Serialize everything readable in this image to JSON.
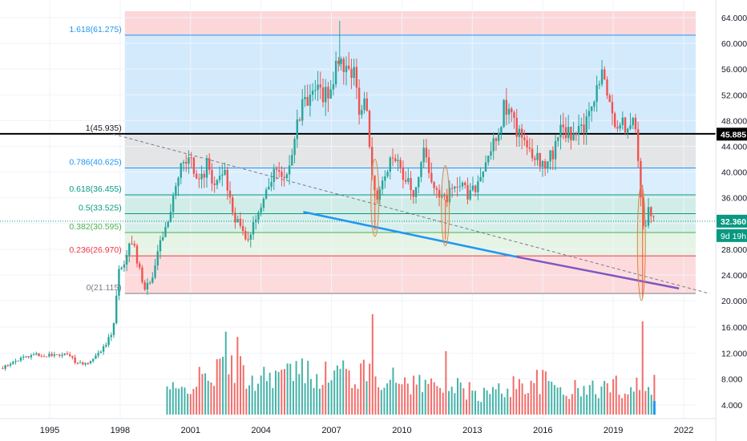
{
  "chart_data": {
    "type": "candlestick",
    "title": "",
    "xlabel": "",
    "ylabel": "",
    "x_ticks": [
      "1995",
      "1998",
      "2001",
      "2004",
      "2007",
      "2010",
      "2013",
      "2016",
      "2019",
      "2022"
    ],
    "y_ticks": [
      "4.000",
      "8.000",
      "12.000",
      "16.000",
      "20.000",
      "24.000",
      "28.000",
      "32.000",
      "36.000",
      "40.000",
      "44.000",
      "48.000",
      "52.000",
      "56.000",
      "60.000",
      "64.000"
    ],
    "x_range": [
      1993.0,
      2023.4
    ],
    "price_range": [
      19.5,
      65.0
    ],
    "volume_axis_range": [
      2.5,
      17.8
    ],
    "fib_levels": [
      {
        "label": "1.618(61.275)",
        "value": 61.275,
        "color": "#2196f3"
      },
      {
        "label": "1(45.935)",
        "value": 45.935,
        "color": "#000000"
      },
      {
        "label": "0.786(40.625)",
        "value": 40.625,
        "color": "#2196f3"
      },
      {
        "label": "0.618(36.455)",
        "value": 36.455,
        "color": "#089981"
      },
      {
        "label": "0.5(33.525)",
        "value": 33.525,
        "color": "#089981"
      },
      {
        "label": "0.382(30.595)",
        "value": 30.595,
        "color": "#4caf50"
      },
      {
        "label": "0.236(26.970)",
        "value": 26.97,
        "color": "#f23645"
      },
      {
        "label": "0(21.115)",
        "value": 21.115,
        "color": "#787b86"
      }
    ],
    "price_labels": [
      {
        "label": "45.885",
        "value": 45.885,
        "color": "#000000"
      },
      {
        "label": "32.360",
        "value": 32.36,
        "color": "#089981"
      },
      {
        "label": "9d 19h",
        "color": "#089981"
      }
    ],
    "price_path": [
      [
        1993.0,
        9.5
      ],
      [
        1993.8,
        10.8
      ],
      [
        1994.5,
        11.6
      ],
      [
        1995.2,
        11.5
      ],
      [
        1995.8,
        11.9
      ],
      [
        1996.3,
        10.2
      ],
      [
        1996.8,
        10.5
      ],
      [
        1997.3,
        12.0
      ],
      [
        1997.7,
        14.5
      ],
      [
        1997.9,
        18.0
      ],
      [
        1998.0,
        24.5
      ],
      [
        1998.3,
        25.5
      ],
      [
        1998.6,
        29.5
      ],
      [
        1998.8,
        27.0
      ],
      [
        1999.0,
        23.5
      ],
      [
        1999.2,
        22.0
      ],
      [
        1999.5,
        24.0
      ],
      [
        1999.8,
        29.5
      ],
      [
        2000.2,
        32.0
      ],
      [
        2000.5,
        38.0
      ],
      [
        2000.8,
        42.0
      ],
      [
        2001.2,
        41.0
      ],
      [
        2001.5,
        38.0
      ],
      [
        2001.8,
        41.5
      ],
      [
        2002.2,
        37.5
      ],
      [
        2002.5,
        41.0
      ],
      [
        2002.8,
        35.0
      ],
      [
        2003.1,
        32.0
      ],
      [
        2003.4,
        29.5
      ],
      [
        2003.7,
        30.5
      ],
      [
        2004.0,
        34.0
      ],
      [
        2004.3,
        37.5
      ],
      [
        2004.7,
        40.0
      ],
      [
        2005.1,
        38.5
      ],
      [
        2005.5,
        44.5
      ],
      [
        2005.8,
        50.0
      ],
      [
        2006.2,
        51.0
      ],
      [
        2006.5,
        53.0
      ],
      [
        2006.8,
        51.5
      ],
      [
        2007.1,
        53.5
      ],
      [
        2007.4,
        57.0
      ],
      [
        2007.8,
        56.0
      ],
      [
        2008.1,
        55.5
      ],
      [
        2008.3,
        49.0
      ],
      [
        2008.6,
        51.5
      ],
      [
        2008.8,
        40.0
      ],
      [
        2009.0,
        35.0
      ],
      [
        2009.4,
        39.0
      ],
      [
        2009.8,
        43.0
      ],
      [
        2010.2,
        39.5
      ],
      [
        2010.6,
        37.0
      ],
      [
        2011.0,
        43.0
      ],
      [
        2011.4,
        39.0
      ],
      [
        2011.8,
        35.5
      ],
      [
        2012.1,
        36.5
      ],
      [
        2012.5,
        38.5
      ],
      [
        2012.9,
        36.5
      ],
      [
        2013.3,
        38.0
      ],
      [
        2013.7,
        42.0
      ],
      [
        2014.1,
        45.0
      ],
      [
        2014.5,
        50.5
      ],
      [
        2014.9,
        47.5
      ],
      [
        2015.3,
        44.0
      ],
      [
        2015.7,
        43.0
      ],
      [
        2016.1,
        41.0
      ],
      [
        2016.5,
        42.5
      ],
      [
        2016.9,
        47.0
      ],
      [
        2017.3,
        45.5
      ],
      [
        2017.8,
        46.5
      ],
      [
        2018.2,
        49.5
      ],
      [
        2018.6,
        55.0
      ],
      [
        2018.9,
        52.0
      ],
      [
        2019.2,
        48.0
      ],
      [
        2019.6,
        47.0
      ],
      [
        2019.9,
        48.5
      ],
      [
        2020.1,
        47.0
      ],
      [
        2020.25,
        38.0
      ],
      [
        2020.4,
        31.0
      ],
      [
        2020.6,
        34.0
      ],
      [
        2020.75,
        32.36
      ]
    ],
    "volume_path": [
      [
        2000.0,
        6.4
      ],
      [
        2000.5,
        5.6
      ],
      [
        2001.0,
        7.3
      ],
      [
        2001.5,
        7.7
      ],
      [
        2002.0,
        8.6
      ],
      [
        2002.5,
        9.7
      ],
      [
        2003.0,
        9.5
      ],
      [
        2003.5,
        7.5
      ],
      [
        2004.0,
        8.3
      ],
      [
        2004.5,
        8.8
      ],
      [
        2005.0,
        8.4
      ],
      [
        2005.5,
        8.9
      ],
      [
        2006.0,
        8.9
      ],
      [
        2006.5,
        8.5
      ],
      [
        2007.0,
        8.4
      ],
      [
        2007.5,
        9.1
      ],
      [
        2008.0,
        8.0
      ],
      [
        2008.5,
        8.7
      ],
      [
        2009.0,
        8.5
      ],
      [
        2009.5,
        7.5
      ],
      [
        2010.0,
        7.6
      ],
      [
        2010.5,
        7.3
      ],
      [
        2011.0,
        7.0
      ],
      [
        2011.5,
        6.8
      ],
      [
        2012.0,
        6.6
      ],
      [
        2012.5,
        6.2
      ],
      [
        2013.0,
        5.8
      ],
      [
        2013.5,
        5.5
      ],
      [
        2014.0,
        5.8
      ],
      [
        2014.5,
        6.5
      ],
      [
        2015.0,
        7.0
      ],
      [
        2015.5,
        7.4
      ],
      [
        2016.0,
        7.4
      ],
      [
        2016.5,
        6.8
      ],
      [
        2017.0,
        6.2
      ],
      [
        2017.5,
        6.0
      ],
      [
        2018.0,
        6.2
      ],
      [
        2018.5,
        6.5
      ],
      [
        2019.0,
        6.8
      ],
      [
        2019.5,
        6.5
      ],
      [
        2020.0,
        7.0
      ],
      [
        2020.5,
        7.2
      ]
    ],
    "volume_spikes": [
      {
        "x": 2002.55,
        "v": 15.3
      },
      {
        "x": 2003.0,
        "v": 14.5
      },
      {
        "x": 2008.8,
        "v": 18.0
      },
      {
        "x": 2011.85,
        "v": 12.3
      },
      {
        "x": 2020.25,
        "v": 16.9
      }
    ],
    "trendlines": [
      {
        "name": "dashed",
        "from": [
          1997.7,
          45.9
        ],
        "to": [
          2023.1,
          21.1
        ],
        "color": "#787b86",
        "dashed": true
      },
      {
        "name": "blue",
        "from": [
          2005.8,
          33.8
        ],
        "to": [
          2014.9,
          26.8
        ],
        "color": "#2196f3"
      },
      {
        "name": "purple",
        "from": [
          2014.9,
          26.8
        ],
        "to": [
          2021.8,
          21.9
        ],
        "color": "#7e57c2"
      }
    ],
    "ellipses": [
      {
        "x": 2008.85,
        "cy": 36.0,
        "top": 42.0,
        "bottom": 30.0
      },
      {
        "x": 2011.85,
        "cy": 35.0,
        "top": 41.0,
        "bottom": 28.5
      },
      {
        "x": 2020.2,
        "cy": 29.0,
        "top": 38.0,
        "bottom": 20.0
      }
    ]
  }
}
